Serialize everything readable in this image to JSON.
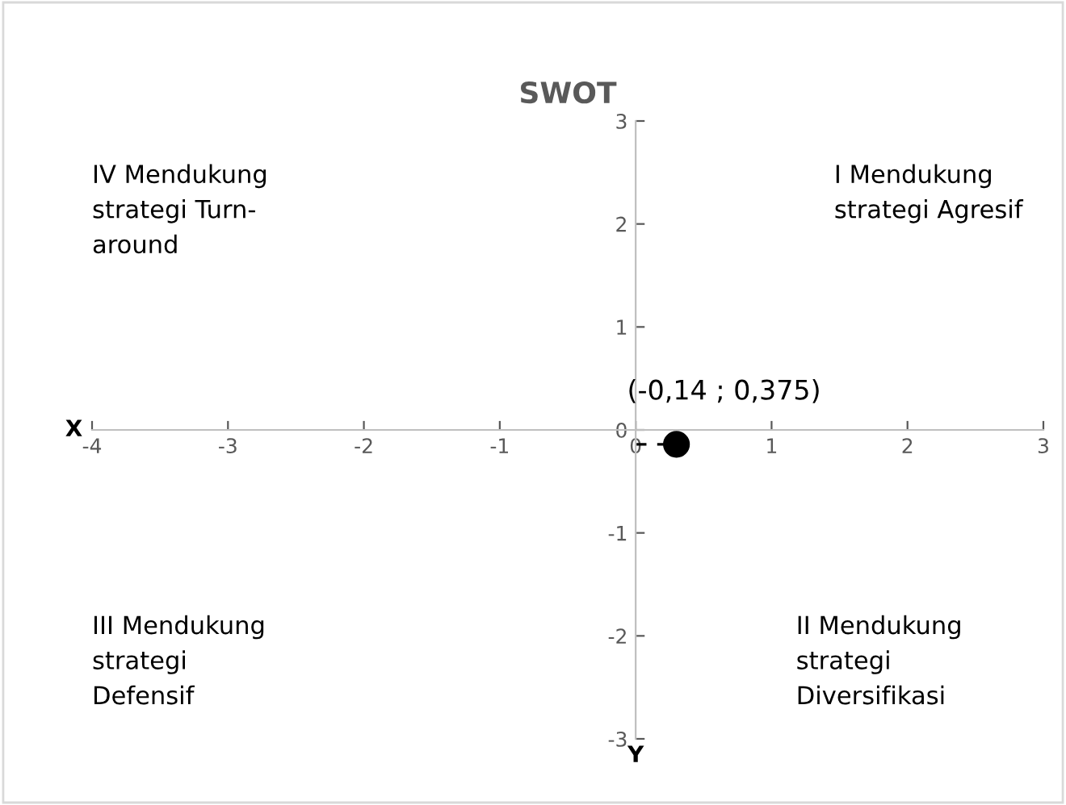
{
  "chart_data": {
    "type": "scatter",
    "title": "SWOT",
    "x": [
      0.3
    ],
    "values": [
      -0.14
    ],
    "xerrors": [
      [
        0,
        0.3
      ]
    ],
    "color": "#000000",
    "marker": "circle",
    "xlim": [
      -4,
      3
    ],
    "ylim": [
      -3,
      3
    ],
    "xticks": [
      -4,
      -3,
      -2,
      -1,
      0,
      1,
      2,
      3
    ],
    "yticks": [
      -3,
      -2,
      -1,
      0,
      1,
      2,
      3
    ],
    "grid": false,
    "legend": false,
    "annotations": [
      {
        "text": "(-0,14 ; 0,375)",
        "x": 0.3,
        "y": -0.14
      },
      "I Mendukung\nstrategi Agresif",
      "II Mendukung\nstrategi\nDiversifikasi",
      "III Mendukung\nstrategi\nDefensif",
      "IV Mendukung\nstrategi Turn-\naround",
      "X",
      "Y"
    ]
  }
}
